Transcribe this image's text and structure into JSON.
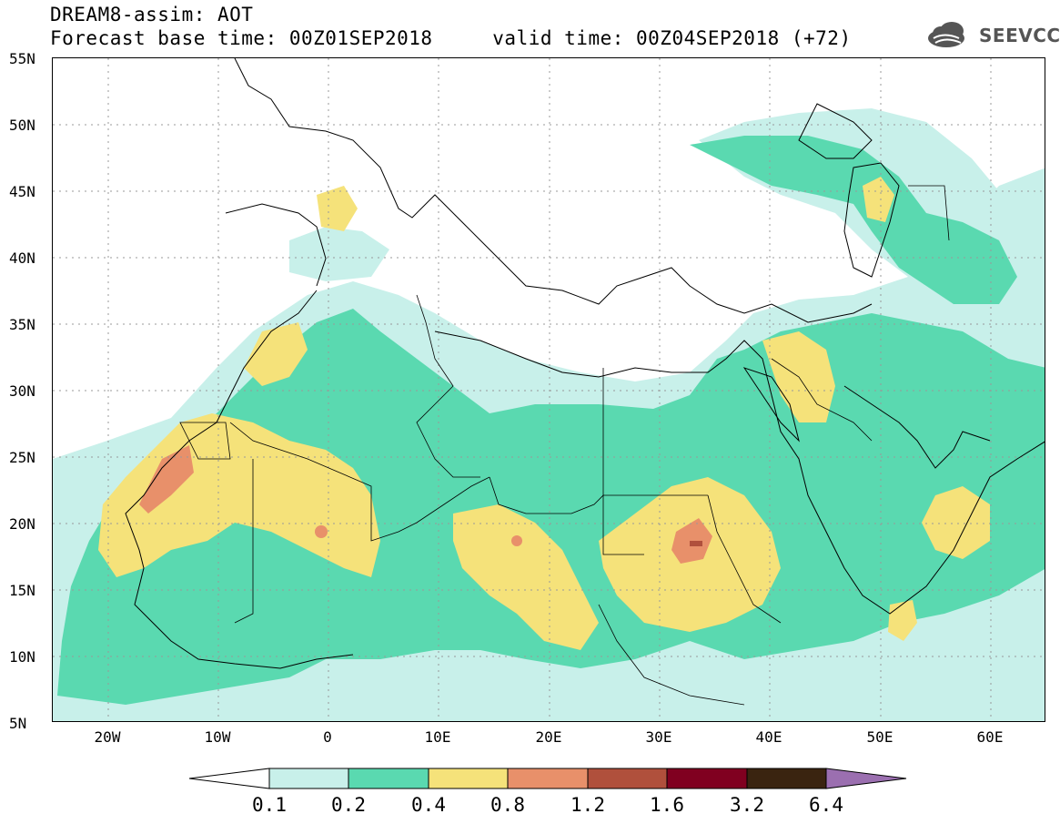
{
  "header": {
    "title_line1": "DREAM8-assim: AOT",
    "title_line2": "Forecast base time: 00Z01SEP2018     valid time: 00Z04SEP2018 (+72)",
    "logo_text": "SEEVCCC",
    "logo_icon": "cloud-icon"
  },
  "map": {
    "lat_ticks": [
      "55N",
      "50N",
      "45N",
      "40N",
      "35N",
      "30N",
      "25N",
      "20N",
      "15N",
      "10N",
      "5N"
    ],
    "lon_ticks": [
      "20W",
      "10W",
      "0",
      "10E",
      "20E",
      "30E",
      "40E",
      "50E",
      "60E"
    ],
    "lat_range": [
      5,
      55
    ],
    "lon_range": [
      -25,
      65
    ]
  },
  "legend": {
    "levels": [
      "0.1",
      "0.2",
      "0.4",
      "0.8",
      "1.2",
      "1.6",
      "3.2",
      "6.4"
    ],
    "colors": [
      "#ffffff",
      "#c8f0ea",
      "#5ad9b0",
      "#f5e27a",
      "#e8906a",
      "#b0503c",
      "#800020",
      "#3a2410",
      "#9b6fb0"
    ]
  }
}
